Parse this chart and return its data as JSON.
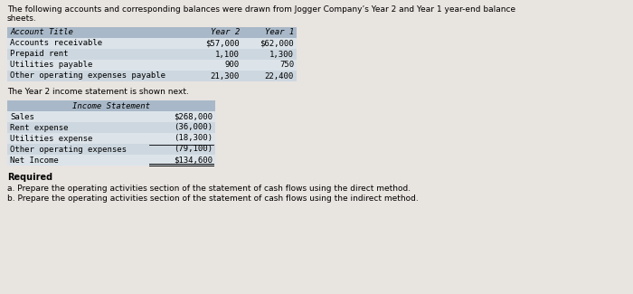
{
  "bg_color": "#e8e4e0",
  "header_text_line1": "The following accounts and corresponding balances were drawn from Jogger Company’s Year 2 and Year 1 year-end balance",
  "header_text_line2": "sheets.",
  "table1": {
    "header_row": [
      "Account Title",
      "Year 2",
      "Year 1"
    ],
    "rows": [
      [
        "Accounts receivable",
        "$57,000",
        "$62,000"
      ],
      [
        "Prepaid rent",
        "1,100",
        "1,300"
      ],
      [
        "Utilities payable",
        "900",
        "750"
      ],
      [
        "Other operating expenses payable",
        "21,300",
        "22,400"
      ]
    ],
    "header_bg": "#a8b8c8",
    "row_bgs": [
      "#dce4ea",
      "#cdd7df",
      "#dce4ea",
      "#cdd7df"
    ]
  },
  "mid_text": "The Year 2 income statement is shown next.",
  "table2": {
    "header_label": "Income Statement",
    "rows": [
      [
        "Sales",
        "$268,000"
      ],
      [
        "Rent expense",
        "(36,000)"
      ],
      [
        "Utilities expense",
        "(18,300)"
      ],
      [
        "Other operating expenses",
        "(79,100)"
      ],
      [
        "Net Income",
        "$134,600"
      ]
    ],
    "header_bg": "#a8b8c8",
    "row_bgs": [
      "#dce4ea",
      "#cdd7df",
      "#dce4ea",
      "#cdd7df",
      "#dce4ea"
    ]
  },
  "required_text": "Required",
  "req_a": "a. Prepare the operating activities section of the statement of cash flows using the direct method.",
  "req_b": "b. Prepare the operating activities section of the statement of cash flows using the indirect method.",
  "fs": 6.5,
  "fs_req": 7.0
}
